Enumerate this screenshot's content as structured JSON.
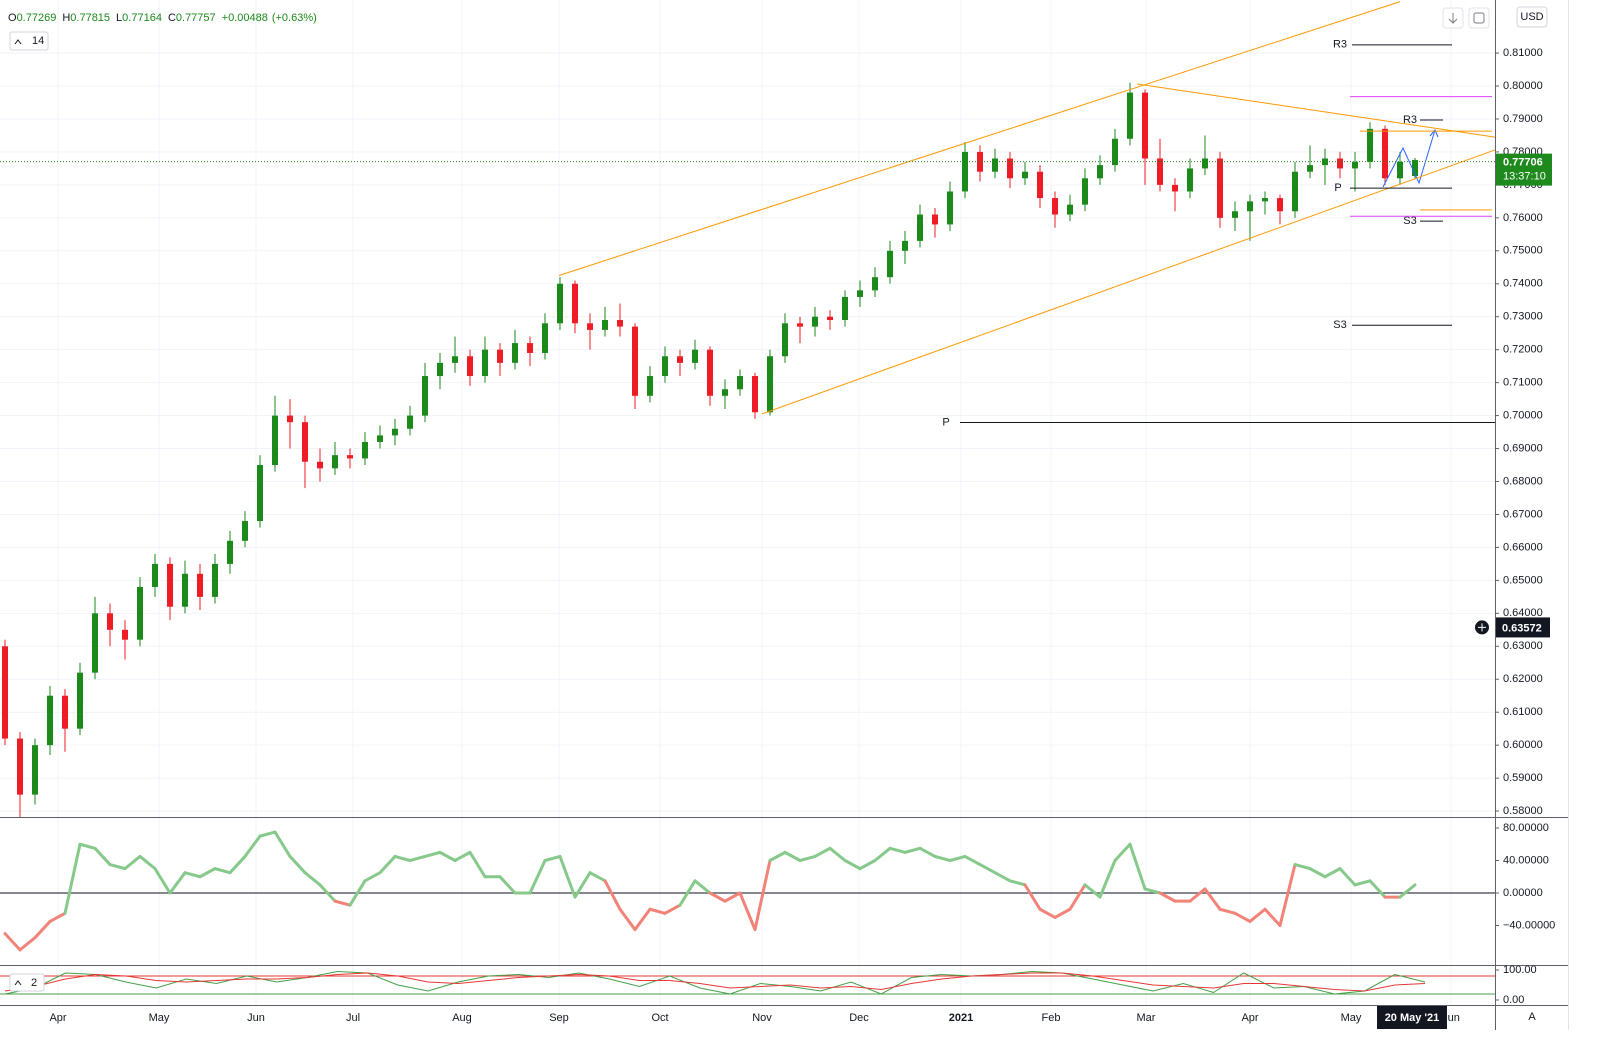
{
  "chart_data": [
    {
      "type": "candlestick",
      "legend": [
        {
          "key": "O",
          "value": "0.77269"
        },
        {
          "key": "H",
          "value": "0.77815"
        },
        {
          "key": "L",
          "value": "0.77164"
        },
        {
          "key": "C",
          "value": "0.77757"
        }
      ],
      "change": "+0.00488",
      "change_pct": "(+0.63%)",
      "indicator_label": "14",
      "currency": "USD",
      "colors": {
        "up": "#1b8a1b",
        "down": "#ee1c25",
        "last": "#1e8a1e"
      },
      "candles": [
        [
          0.63,
          0.632,
          0.6,
          0.602
        ],
        [
          0.602,
          0.604,
          0.578,
          0.585
        ],
        [
          0.585,
          0.602,
          0.582,
          0.6
        ],
        [
          0.6,
          0.618,
          0.597,
          0.615
        ],
        [
          0.615,
          0.617,
          0.598,
          0.605
        ],
        [
          0.605,
          0.625,
          0.603,
          0.622
        ],
        [
          0.622,
          0.645,
          0.62,
          0.64
        ],
        [
          0.64,
          0.643,
          0.63,
          0.635
        ],
        [
          0.635,
          0.638,
          0.626,
          0.632
        ],
        [
          0.632,
          0.651,
          0.63,
          0.648
        ],
        [
          0.648,
          0.658,
          0.645,
          0.655
        ],
        [
          0.655,
          0.657,
          0.638,
          0.642
        ],
        [
          0.642,
          0.656,
          0.64,
          0.652
        ],
        [
          0.652,
          0.655,
          0.641,
          0.645
        ],
        [
          0.645,
          0.658,
          0.643,
          0.655
        ],
        [
          0.655,
          0.665,
          0.652,
          0.662
        ],
        [
          0.662,
          0.671,
          0.66,
          0.668
        ],
        [
          0.668,
          0.688,
          0.666,
          0.685
        ],
        [
          0.685,
          0.706,
          0.683,
          0.7
        ],
        [
          0.7,
          0.705,
          0.69,
          0.698
        ],
        [
          0.698,
          0.7,
          0.678,
          0.686
        ],
        [
          0.686,
          0.69,
          0.68,
          0.684
        ],
        [
          0.684,
          0.692,
          0.682,
          0.688
        ],
        [
          0.688,
          0.69,
          0.684,
          0.687
        ],
        [
          0.687,
          0.695,
          0.685,
          0.692
        ],
        [
          0.692,
          0.697,
          0.69,
          0.694
        ],
        [
          0.694,
          0.699,
          0.691,
          0.696
        ],
        [
          0.696,
          0.703,
          0.694,
          0.7
        ],
        [
          0.7,
          0.716,
          0.698,
          0.712
        ],
        [
          0.712,
          0.719,
          0.708,
          0.716
        ],
        [
          0.716,
          0.724,
          0.713,
          0.718
        ],
        [
          0.718,
          0.72,
          0.709,
          0.712
        ],
        [
          0.712,
          0.724,
          0.71,
          0.72
        ],
        [
          0.72,
          0.722,
          0.712,
          0.716
        ],
        [
          0.716,
          0.726,
          0.714,
          0.722
        ],
        [
          0.722,
          0.724,
          0.715,
          0.719
        ],
        [
          0.719,
          0.731,
          0.717,
          0.728
        ],
        [
          0.728,
          0.742,
          0.726,
          0.74
        ],
        [
          0.74,
          0.741,
          0.725,
          0.728
        ],
        [
          0.728,
          0.731,
          0.72,
          0.726
        ],
        [
          0.726,
          0.733,
          0.724,
          0.729
        ],
        [
          0.729,
          0.734,
          0.724,
          0.727
        ],
        [
          0.727,
          0.728,
          0.702,
          0.706
        ],
        [
          0.706,
          0.715,
          0.704,
          0.712
        ],
        [
          0.712,
          0.721,
          0.71,
          0.718
        ],
        [
          0.718,
          0.72,
          0.712,
          0.716
        ],
        [
          0.716,
          0.723,
          0.714,
          0.72
        ],
        [
          0.72,
          0.721,
          0.703,
          0.706
        ],
        [
          0.706,
          0.711,
          0.702,
          0.708
        ],
        [
          0.708,
          0.714,
          0.706,
          0.712
        ],
        [
          0.712,
          0.713,
          0.699,
          0.701
        ],
        [
          0.701,
          0.72,
          0.7,
          0.718
        ],
        [
          0.718,
          0.731,
          0.716,
          0.728
        ],
        [
          0.728,
          0.73,
          0.722,
          0.727
        ],
        [
          0.727,
          0.733,
          0.724,
          0.73
        ],
        [
          0.73,
          0.732,
          0.726,
          0.729
        ],
        [
          0.729,
          0.738,
          0.727,
          0.736
        ],
        [
          0.736,
          0.741,
          0.733,
          0.738
        ],
        [
          0.738,
          0.745,
          0.736,
          0.742
        ],
        [
          0.742,
          0.753,
          0.74,
          0.75
        ],
        [
          0.75,
          0.756,
          0.746,
          0.753
        ],
        [
          0.753,
          0.764,
          0.751,
          0.761
        ],
        [
          0.761,
          0.763,
          0.754,
          0.758
        ],
        [
          0.758,
          0.771,
          0.756,
          0.768
        ],
        [
          0.768,
          0.783,
          0.766,
          0.78
        ],
        [
          0.78,
          0.782,
          0.771,
          0.774
        ],
        [
          0.774,
          0.781,
          0.772,
          0.778
        ],
        [
          0.778,
          0.78,
          0.769,
          0.772
        ],
        [
          0.772,
          0.777,
          0.77,
          0.774
        ],
        [
          0.774,
          0.776,
          0.763,
          0.766
        ],
        [
          0.766,
          0.768,
          0.757,
          0.761
        ],
        [
          0.761,
          0.767,
          0.759,
          0.764
        ],
        [
          0.764,
          0.775,
          0.762,
          0.772
        ],
        [
          0.772,
          0.779,
          0.77,
          0.776
        ],
        [
          0.776,
          0.787,
          0.774,
          0.784
        ],
        [
          0.784,
          0.801,
          0.782,
          0.798
        ],
        [
          0.798,
          0.799,
          0.77,
          0.778
        ],
        [
          0.778,
          0.784,
          0.768,
          0.77
        ],
        [
          0.77,
          0.772,
          0.762,
          0.768
        ],
        [
          0.768,
          0.778,
          0.766,
          0.775
        ],
        [
          0.775,
          0.785,
          0.773,
          0.778
        ],
        [
          0.778,
          0.78,
          0.757,
          0.76
        ],
        [
          0.76,
          0.765,
          0.756,
          0.762
        ],
        [
          0.762,
          0.767,
          0.753,
          0.765
        ],
        [
          0.765,
          0.768,
          0.761,
          0.766
        ],
        [
          0.766,
          0.767,
          0.758,
          0.762
        ],
        [
          0.762,
          0.777,
          0.76,
          0.774
        ],
        [
          0.774,
          0.782,
          0.772,
          0.776
        ],
        [
          0.776,
          0.781,
          0.77,
          0.778
        ],
        [
          0.778,
          0.78,
          0.772,
          0.775
        ],
        [
          0.775,
          0.78,
          0.768,
          0.777
        ],
        [
          0.777,
          0.789,
          0.775,
          0.787
        ],
        [
          0.787,
          0.788,
          0.77,
          0.772
        ],
        [
          0.772,
          0.78,
          0.77,
          0.777
        ],
        [
          0.77269,
          0.77815,
          0.77164,
          0.77757
        ]
      ],
      "ylim": [
        0.5782,
        0.8261
      ],
      "yticks": [
        {
          "value": 0.58,
          "label": "0.58000"
        },
        {
          "value": 0.59,
          "label": "0.59000"
        },
        {
          "value": 0.6,
          "label": "0.60000"
        },
        {
          "value": 0.61,
          "label": "0.61000"
        },
        {
          "value": 0.62,
          "label": "0.62000"
        },
        {
          "value": 0.63,
          "label": "0.63000"
        },
        {
          "value": 0.64,
          "label": "0.64000"
        },
        {
          "value": 0.65,
          "label": "0.65000"
        },
        {
          "value": 0.66,
          "label": "0.66000"
        },
        {
          "value": 0.67,
          "label": "0.67000"
        },
        {
          "value": 0.68,
          "label": "0.68000"
        },
        {
          "value": 0.69,
          "label": "0.69000"
        },
        {
          "value": 0.7,
          "label": "0.70000"
        },
        {
          "value": 0.71,
          "label": "0.71000"
        },
        {
          "value": 0.72,
          "label": "0.72000"
        },
        {
          "value": 0.73,
          "label": "0.73000"
        },
        {
          "value": 0.74,
          "label": "0.74000"
        },
        {
          "value": 0.75,
          "label": "0.75000"
        },
        {
          "value": 0.76,
          "label": "0.76000"
        },
        {
          "value": 0.77,
          "label": "0.77000"
        },
        {
          "value": 0.78,
          "label": "0.78000"
        },
        {
          "value": 0.79,
          "label": "0.79000"
        },
        {
          "value": 0.8,
          "label": "0.80000"
        },
        {
          "value": 0.81,
          "label": "0.81000"
        }
      ],
      "xticks": [
        "Apr",
        "May",
        "Jun",
        "Jul",
        "Aug",
        "Sep",
        "Oct",
        "Nov",
        "Dec",
        "2021",
        "Feb",
        "Mar",
        "Apr",
        "May",
        "Jun"
      ],
      "grid": true,
      "last_price": 0.77706,
      "countdown": "13:37:10",
      "crosshair_price": 0.63572,
      "crosshair_date": "20 May '21",
      "levels": [
        {
          "label": "R3",
          "value": 0.8125,
          "color": "#131722"
        },
        {
          "value": 0.7968,
          "color": "#e040fb"
        },
        {
          "label": "R3",
          "value": 0.7897,
          "color": "#131722"
        },
        {
          "label": "P",
          "value": 0.769,
          "color": "#131722"
        },
        {
          "label": "S3",
          "value": 0.759,
          "color": "#131722"
        },
        {
          "value": 0.7624,
          "color": "#ff9800"
        },
        {
          "value": 0.7605,
          "color": "#e040fb"
        },
        {
          "label": "S3",
          "value": 0.7274,
          "color": "#131722"
        },
        {
          "label": "P",
          "value": 0.6979,
          "color": "#131722"
        }
      ],
      "trendlines": [
        {
          "start": 0.7425,
          "end": 0.8256,
          "color": "#ff9800"
        },
        {
          "start": 0.7005,
          "end": 0.7806,
          "color": "#ff9800"
        },
        {
          "start": 0.8006,
          "end": 0.7845,
          "color": "#ff9800"
        },
        {
          "start": 0.7863,
          "end": 0.7863,
          "color": "#ff9800"
        }
      ]
    },
    {
      "type": "line",
      "values": [
        -50,
        -70,
        -55,
        -35,
        -25,
        60,
        55,
        35,
        30,
        45,
        30,
        0,
        25,
        20,
        30,
        25,
        45,
        70,
        75,
        45,
        25,
        10,
        -10,
        -15,
        15,
        25,
        45,
        40,
        45,
        50,
        40,
        50,
        20,
        20,
        0,
        0,
        40,
        45,
        -5,
        25,
        15,
        -20,
        -45,
        -20,
        -25,
        -15,
        15,
        0,
        -10,
        0,
        -45,
        40,
        50,
        40,
        45,
        55,
        40,
        30,
        40,
        55,
        50,
        55,
        45,
        40,
        45,
        35,
        25,
        15,
        10,
        -20,
        -30,
        -20,
        10,
        -5,
        40,
        60,
        5,
        0,
        -10,
        -10,
        5,
        -20,
        -25,
        -35,
        -20,
        -40,
        35,
        30,
        20,
        30,
        10,
        15,
        -5,
        -5,
        10
      ],
      "colors": {
        "positive": "#86c98a",
        "negative": "#f28379",
        "zero": "#5d606b"
      },
      "ylim": [
        -88.6,
        92.3
      ],
      "yticks": [
        {
          "value": 80,
          "label": "80.00000"
        },
        {
          "value": 40,
          "label": "40.00000"
        },
        {
          "value": 0,
          "label": "0.00000"
        },
        {
          "value": -40,
          "label": "−40.00000"
        }
      ]
    },
    {
      "type": "line",
      "label": "2",
      "series": [
        {
          "color": "#43a047",
          "values": [
            20,
            40,
            90,
            85,
            60,
            40,
            70,
            55,
            80,
            60,
            75,
            95,
            90,
            50,
            30,
            60,
            80,
            85,
            75,
            90,
            70,
            45,
            80,
            40,
            20,
            55,
            45,
            30,
            60,
            20,
            75,
            85,
            80,
            85,
            95,
            90,
            70,
            50,
            30,
            55,
            25,
            90,
            40,
            45,
            20,
            30,
            85,
            60
          ]
        },
        {
          "color": "#e53935",
          "values": [
            30,
            45,
            70,
            85,
            80,
            65,
            60,
            65,
            70,
            70,
            75,
            85,
            90,
            80,
            60,
            55,
            65,
            75,
            80,
            85,
            80,
            65,
            65,
            55,
            40,
            45,
            50,
            40,
            45,
            35,
            55,
            70,
            80,
            85,
            90,
            90,
            80,
            65,
            50,
            45,
            40,
            55,
            55,
            45,
            35,
            30,
            50,
            55
          ]
        }
      ],
      "levels": [
        {
          "value": 80,
          "color": "#e53935"
        },
        {
          "value": 20,
          "color": "#43a047"
        }
      ],
      "ylim": [
        -16.7,
        113.3
      ],
      "yticks": [
        {
          "value": 100,
          "label": "100.00"
        },
        {
          "value": 0,
          "label": "0.00"
        }
      ]
    }
  ]
}
